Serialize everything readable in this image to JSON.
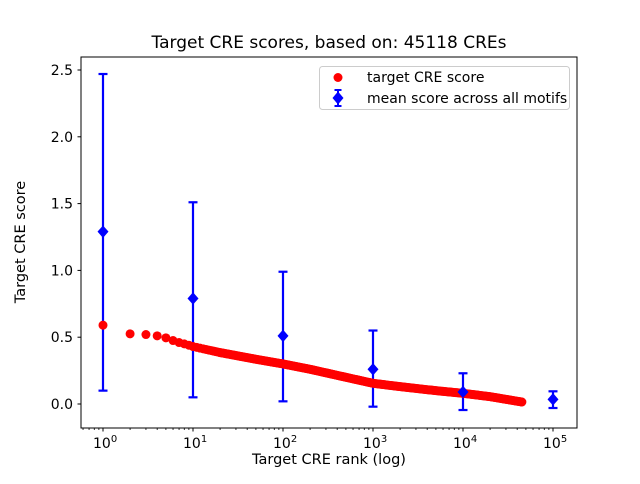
{
  "figure": {
    "background": "#ffffff",
    "spine_color": "#000000"
  },
  "chart_data": {
    "type": "scatter",
    "title": "Target CRE scores, based on: 45118 CREs",
    "xlabel": "Target CRE rank (log)",
    "ylabel": "Target CRE score",
    "xscale": "log",
    "xlim": [
      0.57,
      185000
    ],
    "ylim": [
      -0.18,
      2.6
    ],
    "grid": false,
    "xticks": {
      "base": "10",
      "exponents": [
        "0",
        "1",
        "2",
        "3",
        "4",
        "5"
      ],
      "values": [
        1,
        10,
        100,
        1000,
        10000,
        100000
      ]
    },
    "yticks": {
      "labels": [
        "0.0",
        "0.5",
        "1.0",
        "1.5",
        "2.0",
        "2.5"
      ],
      "values": [
        0,
        0.5,
        1,
        1.5,
        2,
        2.5
      ]
    },
    "legend": {
      "position": "upper right",
      "border_color": "#cccccc",
      "background": "#ffffff",
      "entries": [
        {
          "label": "target CRE score",
          "marker": "circle",
          "color": "#ff0000"
        },
        {
          "label": "mean score across all motifs",
          "marker": "diamond-errorbar",
          "color": "#0000ff"
        }
      ]
    },
    "series": [
      {
        "name": "target CRE score",
        "color": "#ff0000",
        "marker": "circle",
        "marker_radius_px": 4.5,
        "n_points_depicted": 45118,
        "curve_points": [
          [
            1,
            0.59
          ],
          [
            2,
            0.525
          ],
          [
            3,
            0.52
          ],
          [
            4,
            0.51
          ],
          [
            5,
            0.495
          ],
          [
            6,
            0.475
          ],
          [
            7,
            0.46
          ],
          [
            8,
            0.45
          ],
          [
            9,
            0.44
          ],
          [
            10,
            0.43
          ],
          [
            20,
            0.385
          ],
          [
            50,
            0.335
          ],
          [
            100,
            0.3
          ],
          [
            200,
            0.26
          ],
          [
            500,
            0.2
          ],
          [
            1000,
            0.155
          ],
          [
            2000,
            0.13
          ],
          [
            5000,
            0.1
          ],
          [
            10000,
            0.08
          ],
          [
            20000,
            0.055
          ],
          [
            45118,
            0.015
          ]
        ]
      },
      {
        "name": "mean score across all motifs",
        "color": "#0000ff",
        "marker": "diamond",
        "points": [
          {
            "x": 1,
            "y": 1.29,
            "lo": 0.1,
            "hi": 2.47
          },
          {
            "x": 10,
            "y": 0.79,
            "lo": 0.05,
            "hi": 1.51
          },
          {
            "x": 100,
            "y": 0.51,
            "lo": 0.02,
            "hi": 0.99
          },
          {
            "x": 1000,
            "y": 0.26,
            "lo": -0.02,
            "hi": 0.55
          },
          {
            "x": 10000,
            "y": 0.09,
            "lo": -0.045,
            "hi": 0.23
          },
          {
            "x": 100000,
            "y": 0.035,
            "lo": -0.03,
            "hi": 0.095
          }
        ]
      }
    ]
  }
}
